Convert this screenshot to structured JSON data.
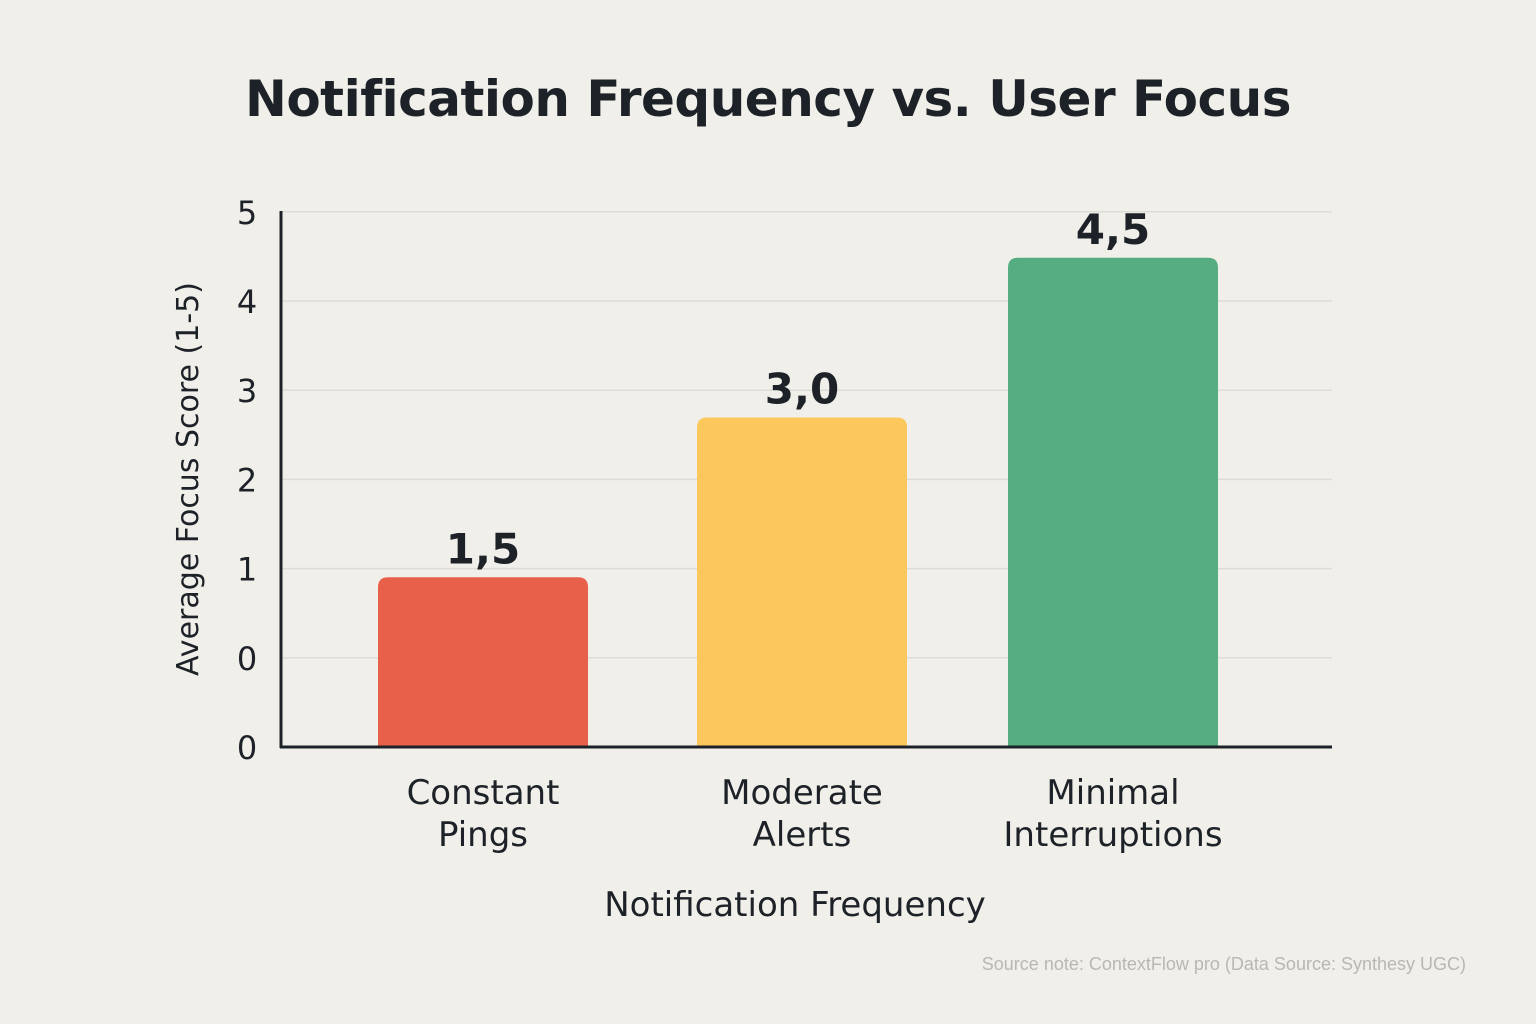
{
  "chart_data": {
    "type": "bar",
    "title": "Notification Frequency vs. User Focus",
    "xlabel": "Notification Frequency",
    "ylabel": "Average Focus Score (1-5)",
    "categories": [
      [
        "Constant",
        "Pings"
      ],
      [
        "Moderate",
        "Alerts"
      ],
      [
        "Minimal",
        "Interruptions"
      ]
    ],
    "values": [
      1.5,
      3.0,
      4.5
    ],
    "value_labels": [
      "1,5",
      "3,0",
      "4,5"
    ],
    "bar_colors": [
      "#e9604a",
      "#fcc85b",
      "#57ad82"
    ],
    "y_ticks": [
      "0",
      "0",
      "1",
      "2",
      "3",
      "4",
      "5"
    ],
    "ylim": [
      0,
      5
    ],
    "grid": true,
    "legend": "none"
  },
  "source_note": "Source note: ContextFlow pro  (Data Source: Synthesy UGC)"
}
